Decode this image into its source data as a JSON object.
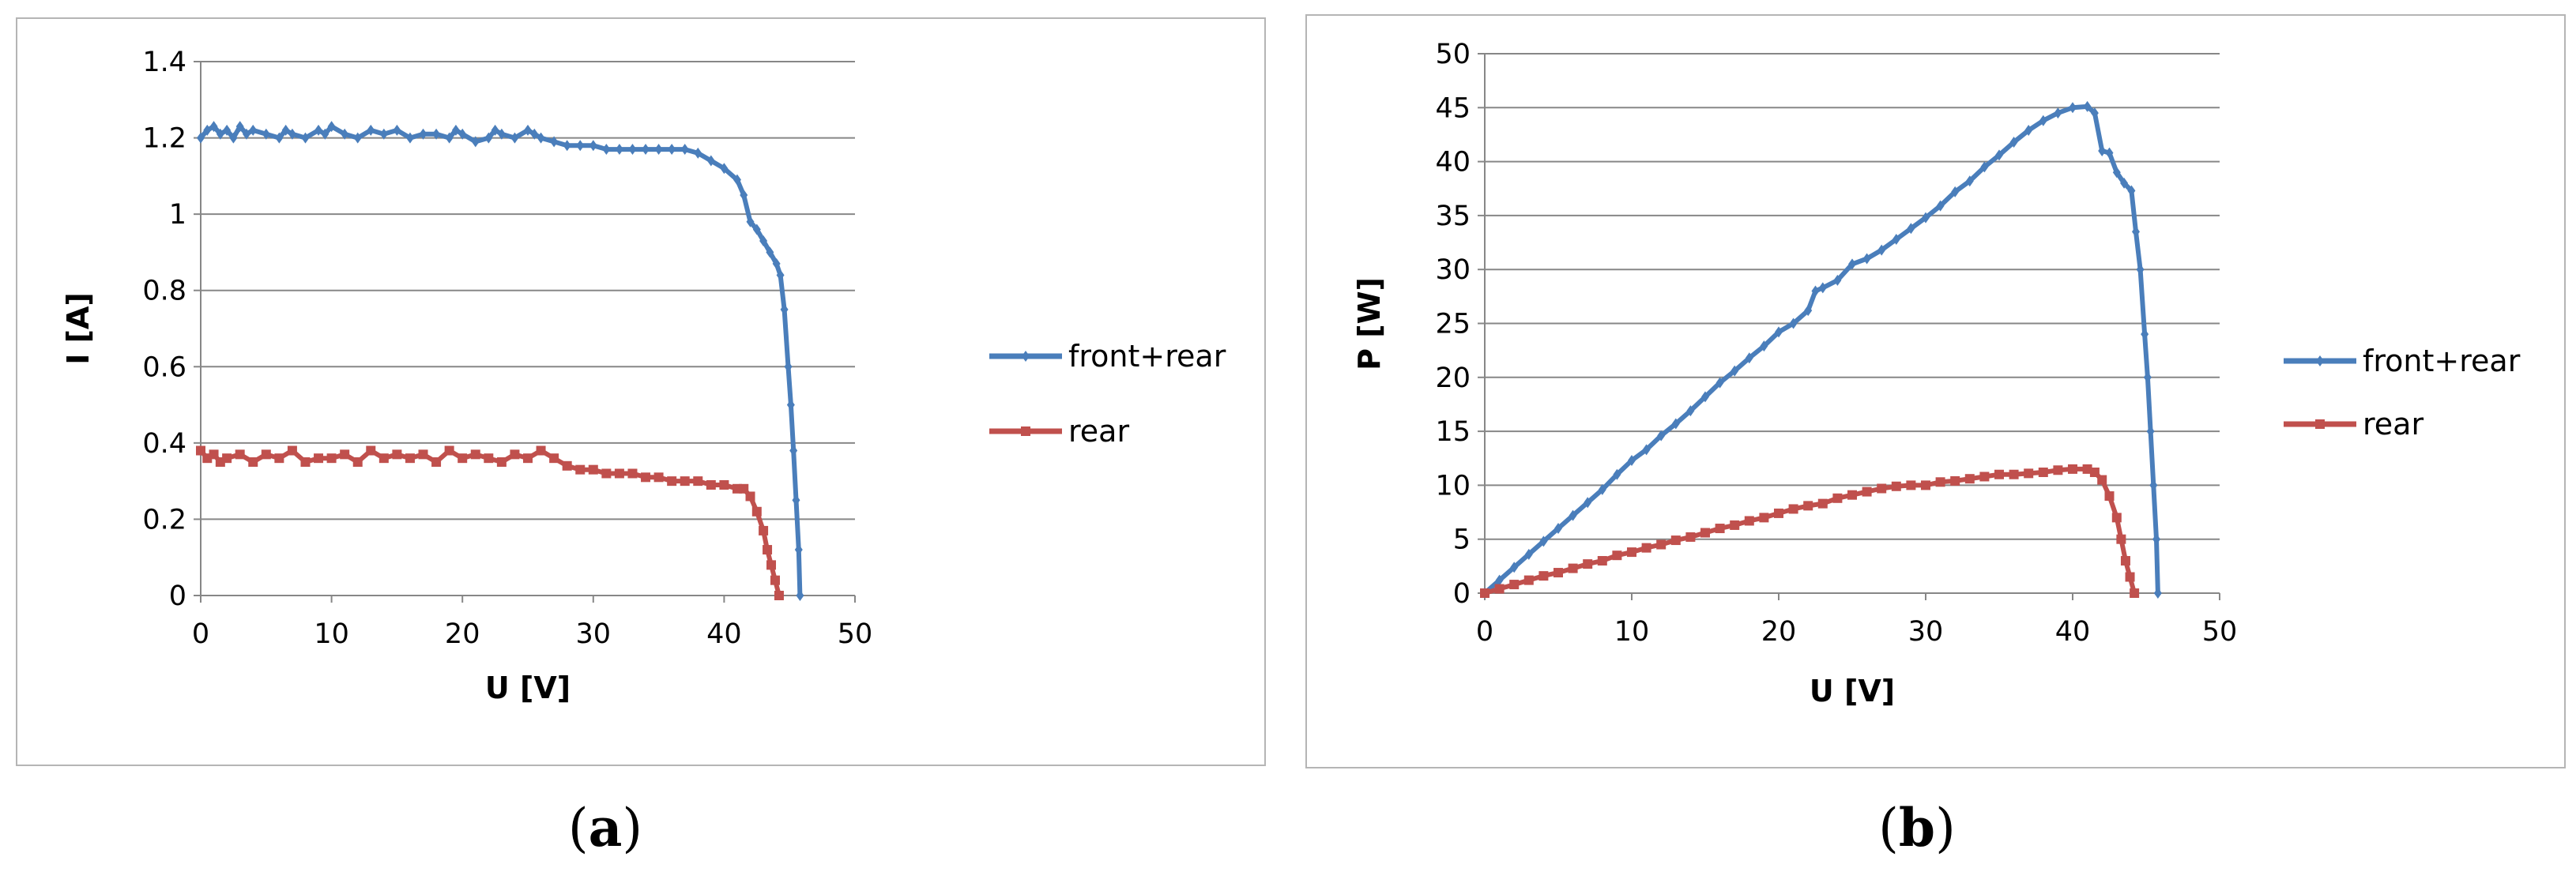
{
  "chart_data": [
    {
      "type": "line",
      "panel_label": "a",
      "xlabel": "U [V]",
      "ylabel": "I [A]",
      "xlim": [
        0,
        50
      ],
      "ylim": [
        0,
        1.4
      ],
      "xticks": [
        0,
        10,
        20,
        30,
        40,
        50
      ],
      "yticks": [
        0,
        0.2,
        0.4,
        0.6,
        0.8,
        1,
        1.2,
        1.4
      ],
      "grid": "horizontal",
      "legend": "right",
      "series": [
        {
          "name": "front+rear",
          "color": "#4a7ebb",
          "marker": "diamond",
          "x": [
            0,
            0.5,
            1,
            1.5,
            2,
            2.5,
            3,
            3.5,
            4,
            5,
            6,
            6.5,
            7,
            8,
            9,
            9.5,
            10,
            11,
            12,
            13,
            14,
            15,
            16,
            17,
            18,
            19,
            19.5,
            20,
            21,
            22,
            22.5,
            23,
            24,
            25,
            25.5,
            26,
            27,
            28,
            29,
            30,
            31,
            32,
            33,
            34,
            35,
            36,
            37,
            38,
            39,
            40,
            41,
            41.5,
            42,
            42.5,
            43,
            43.5,
            44,
            44.3,
            44.6,
            44.9,
            45.1,
            45.3,
            45.5,
            45.7,
            45.8
          ],
          "y": [
            1.2,
            1.22,
            1.23,
            1.21,
            1.22,
            1.2,
            1.23,
            1.21,
            1.22,
            1.21,
            1.2,
            1.22,
            1.21,
            1.2,
            1.22,
            1.21,
            1.23,
            1.21,
            1.2,
            1.22,
            1.21,
            1.22,
            1.2,
            1.21,
            1.21,
            1.2,
            1.22,
            1.21,
            1.19,
            1.2,
            1.22,
            1.21,
            1.2,
            1.22,
            1.21,
            1.2,
            1.19,
            1.18,
            1.18,
            1.18,
            1.17,
            1.17,
            1.17,
            1.17,
            1.17,
            1.17,
            1.17,
            1.16,
            1.14,
            1.12,
            1.09,
            1.05,
            0.98,
            0.96,
            0.93,
            0.9,
            0.87,
            0.84,
            0.75,
            0.6,
            0.5,
            0.38,
            0.25,
            0.12,
            0
          ]
        },
        {
          "name": "rear",
          "color": "#c0504d",
          "marker": "square",
          "x": [
            0,
            0.5,
            1,
            1.5,
            2,
            3,
            4,
            5,
            6,
            7,
            8,
            9,
            10,
            11,
            12,
            13,
            14,
            15,
            16,
            17,
            18,
            19,
            20,
            21,
            22,
            23,
            24,
            25,
            26,
            27,
            28,
            29,
            30,
            31,
            32,
            33,
            34,
            35,
            36,
            37,
            38,
            39,
            40,
            41,
            41.5,
            42,
            42.5,
            43,
            43.3,
            43.6,
            43.9,
            44.2
          ],
          "y": [
            0.38,
            0.36,
            0.37,
            0.35,
            0.36,
            0.37,
            0.35,
            0.37,
            0.36,
            0.38,
            0.35,
            0.36,
            0.36,
            0.37,
            0.35,
            0.38,
            0.36,
            0.37,
            0.36,
            0.37,
            0.35,
            0.38,
            0.36,
            0.37,
            0.36,
            0.35,
            0.37,
            0.36,
            0.38,
            0.36,
            0.34,
            0.33,
            0.33,
            0.32,
            0.32,
            0.32,
            0.31,
            0.31,
            0.3,
            0.3,
            0.3,
            0.29,
            0.29,
            0.28,
            0.28,
            0.26,
            0.22,
            0.17,
            0.12,
            0.08,
            0.04,
            0
          ]
        }
      ]
    },
    {
      "type": "line",
      "panel_label": "b",
      "xlabel": "U [V]",
      "ylabel": "P [W]",
      "xlim": [
        0,
        50
      ],
      "ylim": [
        0,
        50
      ],
      "xticks": [
        0,
        10,
        20,
        30,
        40,
        50
      ],
      "yticks": [
        0,
        5,
        10,
        15,
        20,
        25,
        30,
        35,
        40,
        45,
        50
      ],
      "grid": "horizontal",
      "legend": "right",
      "series": [
        {
          "name": "front+rear",
          "color": "#4a7ebb",
          "marker": "diamond",
          "x": [
            0,
            1,
            2,
            3,
            4,
            5,
            6,
            7,
            8,
            9,
            10,
            11,
            12,
            13,
            14,
            15,
            16,
            17,
            18,
            19,
            20,
            21,
            22,
            22.5,
            23,
            24,
            25,
            26,
            27,
            28,
            29,
            30,
            31,
            32,
            33,
            34,
            35,
            36,
            37,
            38,
            39,
            40,
            41,
            41.5,
            42,
            42.5,
            43,
            43.5,
            44,
            44.3,
            44.6,
            44.9,
            45.1,
            45.3,
            45.5,
            45.7,
            45.8
          ],
          "y": [
            0,
            1.2,
            2.4,
            3.6,
            4.8,
            6.0,
            7.2,
            8.4,
            9.6,
            11.0,
            12.3,
            13.3,
            14.6,
            15.7,
            16.9,
            18.2,
            19.5,
            20.6,
            21.8,
            22.9,
            24.2,
            25.0,
            26.2,
            28.0,
            28.3,
            29.0,
            30.5,
            31.0,
            31.8,
            32.8,
            33.8,
            34.8,
            35.9,
            37.2,
            38.2,
            39.5,
            40.6,
            41.8,
            42.9,
            43.8,
            44.5,
            45.0,
            45.1,
            44.5,
            41.0,
            40.8,
            39.0,
            38.0,
            37.3,
            33.5,
            30.0,
            24.0,
            20.0,
            15.0,
            10.0,
            5.0,
            0
          ]
        },
        {
          "name": "rear",
          "color": "#c0504d",
          "marker": "square",
          "x": [
            0,
            1,
            2,
            3,
            4,
            5,
            6,
            7,
            8,
            9,
            10,
            11,
            12,
            13,
            14,
            15,
            16,
            17,
            18,
            19,
            20,
            21,
            22,
            23,
            24,
            25,
            26,
            27,
            28,
            29,
            30,
            31,
            32,
            33,
            34,
            35,
            36,
            37,
            38,
            39,
            40,
            41,
            41.5,
            42,
            42.5,
            43,
            43.3,
            43.6,
            43.9,
            44.2
          ],
          "y": [
            0,
            0.4,
            0.8,
            1.2,
            1.6,
            1.9,
            2.3,
            2.7,
            3.0,
            3.5,
            3.8,
            4.2,
            4.5,
            4.9,
            5.2,
            5.6,
            6.0,
            6.3,
            6.7,
            7.0,
            7.4,
            7.8,
            8.1,
            8.3,
            8.8,
            9.1,
            9.4,
            9.7,
            9.9,
            10.0,
            10.0,
            10.3,
            10.4,
            10.6,
            10.8,
            11.0,
            11.0,
            11.1,
            11.2,
            11.4,
            11.5,
            11.5,
            11.2,
            10.5,
            9.0,
            7.0,
            5.0,
            3.0,
            1.5,
            0
          ]
        }
      ]
    }
  ],
  "captions": {
    "a": {
      "open": "(",
      "letter": "a",
      "close": ")"
    },
    "b": {
      "open": "(",
      "letter": "b",
      "close": ")"
    }
  }
}
